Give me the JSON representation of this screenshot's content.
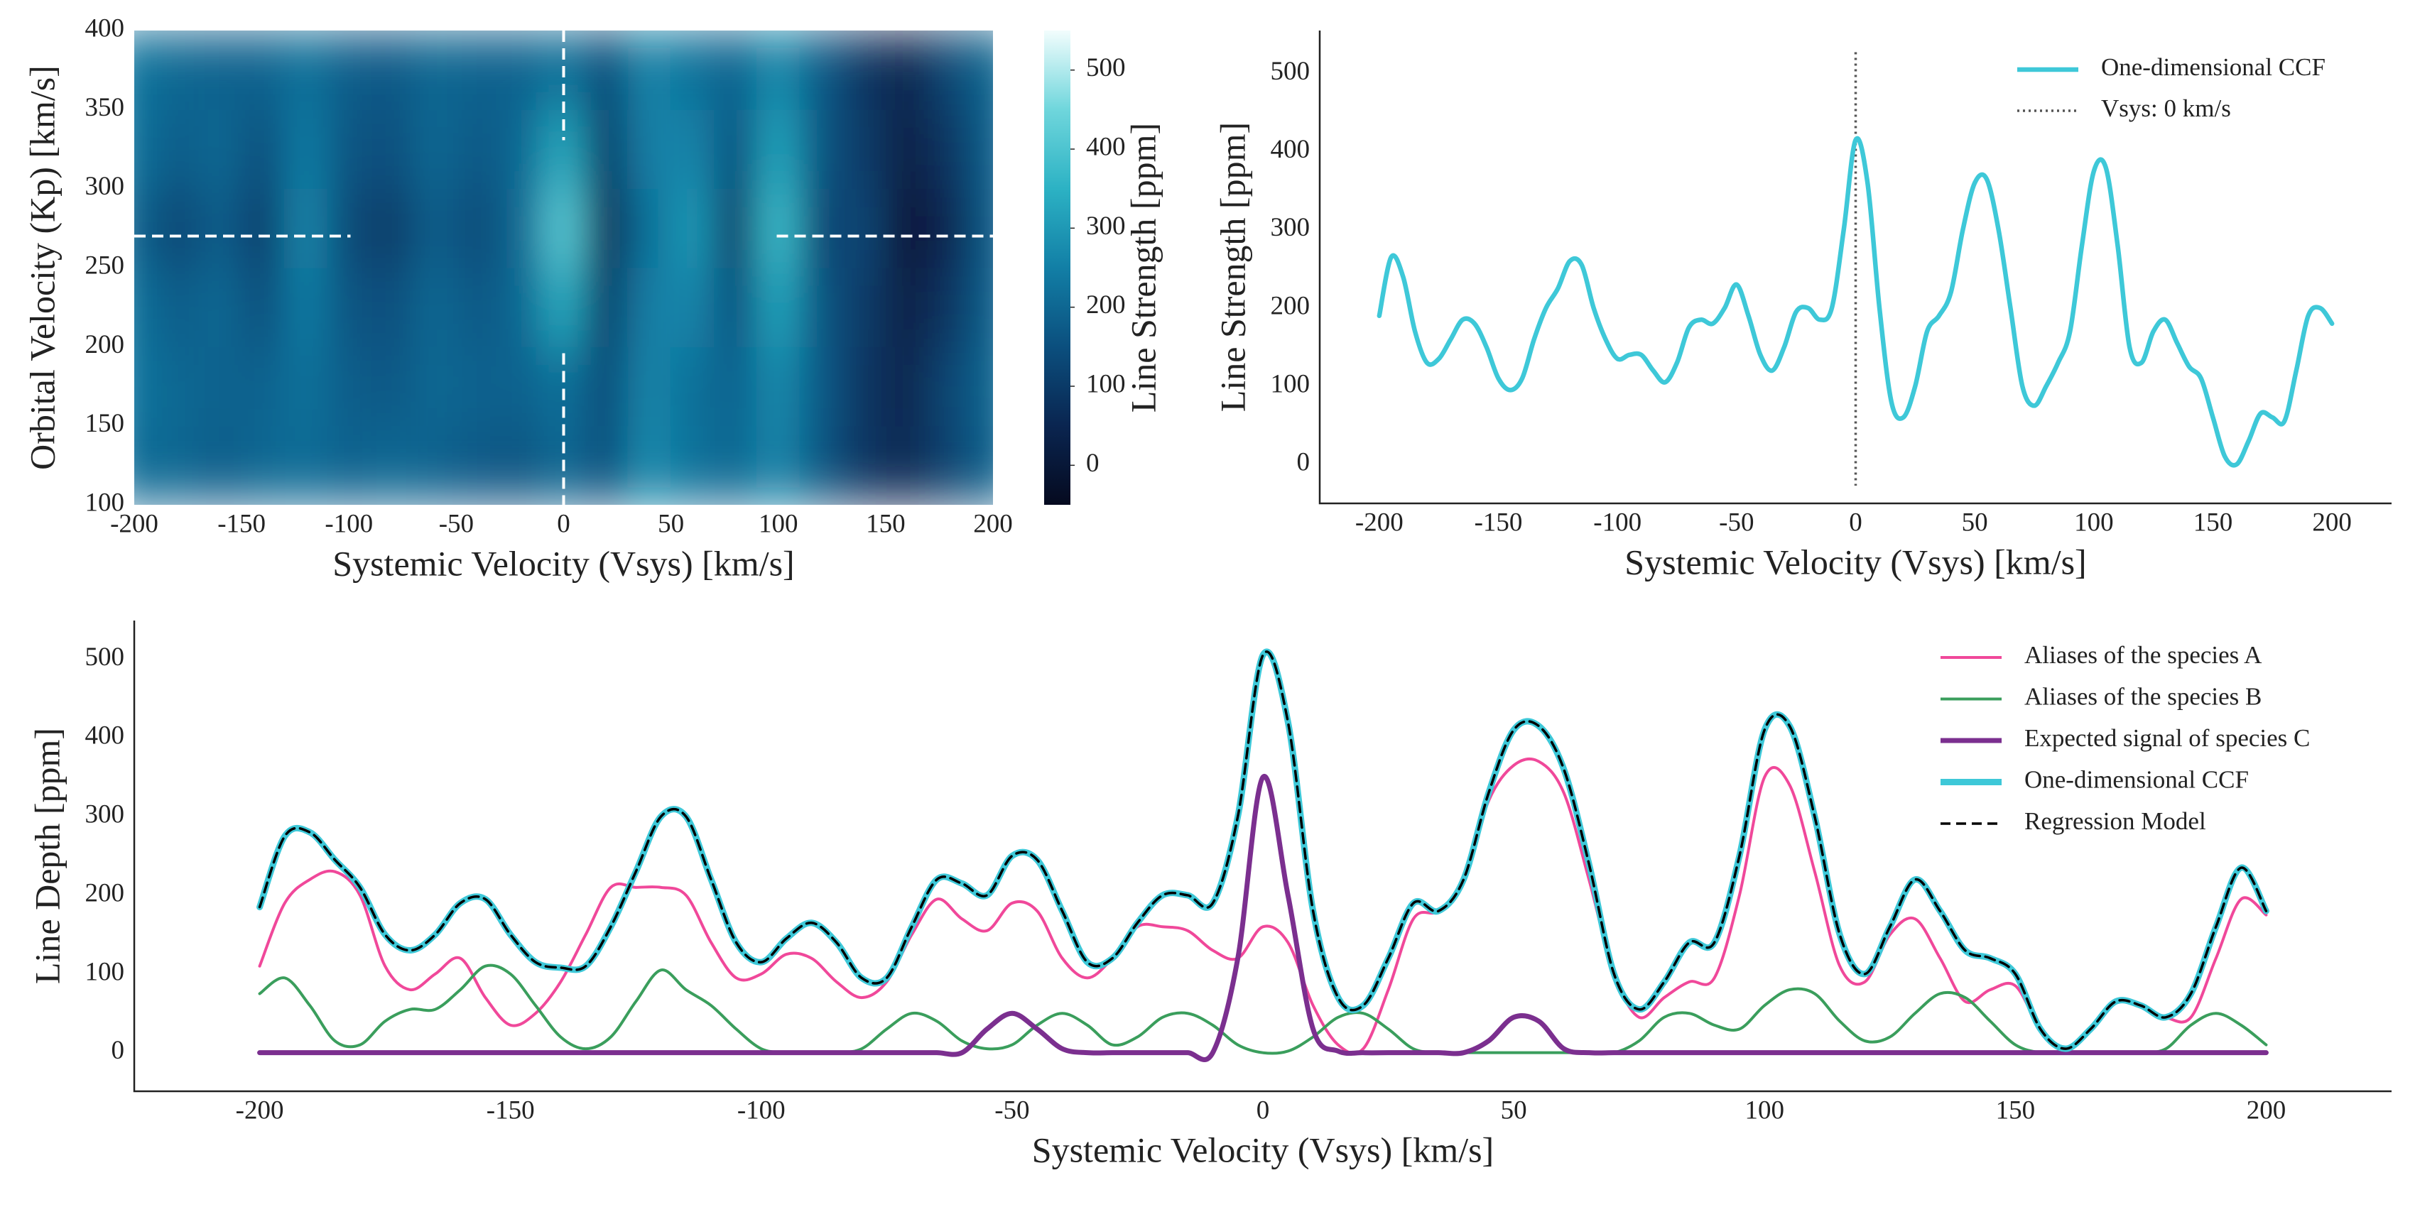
{
  "chart_data": [
    {
      "type": "heatmap",
      "x": [
        -200,
        -180,
        -160,
        -140,
        -120,
        -100,
        -80,
        -60,
        -40,
        -20,
        0,
        20,
        40,
        60,
        80,
        100,
        120,
        140,
        160,
        180,
        200
      ],
      "y": [
        125,
        175,
        225,
        275,
        325,
        375
      ],
      "values": [
        [
          210,
          200,
          180,
          200,
          210,
          190,
          200,
          190,
          170,
          160,
          200,
          150,
          270,
          220,
          200,
          260,
          160,
          90,
          60,
          120,
          190
        ],
        [
          230,
          200,
          190,
          190,
          220,
          180,
          170,
          200,
          190,
          190,
          220,
          140,
          260,
          220,
          190,
          270,
          170,
          90,
          50,
          130,
          200
        ],
        [
          220,
          180,
          200,
          150,
          240,
          160,
          150,
          200,
          170,
          200,
          330,
          100,
          250,
          260,
          150,
          320,
          160,
          100,
          30,
          90,
          190
        ],
        [
          190,
          130,
          180,
          110,
          260,
          135,
          105,
          180,
          140,
          200,
          415,
          60,
          220,
          300,
          100,
          375,
          130,
          125,
          0,
          55,
          180
        ],
        [
          220,
          180,
          200,
          150,
          240,
          160,
          150,
          200,
          170,
          200,
          330,
          100,
          250,
          260,
          150,
          320,
          160,
          100,
          30,
          90,
          190
        ],
        [
          230,
          200,
          190,
          190,
          220,
          180,
          170,
          200,
          190,
          190,
          220,
          140,
          260,
          220,
          190,
          270,
          170,
          90,
          50,
          130,
          200
        ]
      ],
      "xlim": [
        -200,
        200
      ],
      "ylim": [
        100,
        400
      ],
      "xticks": [
        -200,
        -150,
        -100,
        -50,
        0,
        50,
        100,
        150,
        200
      ],
      "yticks": [
        100,
        150,
        200,
        250,
        300,
        350,
        400
      ],
      "xlabel": "Systemic Velocity (Vsys) [km/s]",
      "ylabel": "Orbital Velocity (Kp) [km/s]",
      "crosshair": {
        "x": 0,
        "y": 270
      },
      "colorbar": {
        "label": "Line Strength [ppm]",
        "clim": [
          -50,
          550
        ],
        "ticks": [
          0,
          100,
          200,
          300,
          400,
          500
        ],
        "colors": [
          "#050a1f",
          "#0a2550",
          "#0b4f7e",
          "#127fa6",
          "#2cb2c4",
          "#6fd6dc",
          "#f2fdfd"
        ]
      }
    },
    {
      "type": "line",
      "x": [
        -200,
        -195,
        -190,
        -185,
        -180,
        -175,
        -170,
        -165,
        -160,
        -155,
        -150,
        -145,
        -140,
        -135,
        -130,
        -125,
        -120,
        -115,
        -110,
        -105,
        -100,
        -95,
        -90,
        -85,
        -80,
        -75,
        -70,
        -65,
        -60,
        -55,
        -50,
        -45,
        -40,
        -35,
        -30,
        -25,
        -20,
        -15,
        -10,
        -5,
        0,
        5,
        10,
        15,
        20,
        25,
        30,
        35,
        40,
        45,
        50,
        55,
        60,
        65,
        70,
        75,
        80,
        85,
        90,
        95,
        100,
        105,
        110,
        115,
        120,
        125,
        130,
        135,
        140,
        145,
        150,
        155,
        160,
        165,
        170,
        175,
        180,
        185,
        190,
        195,
        200
      ],
      "series": [
        {
          "name": "One-dimensional CCF",
          "color": "#3ec8d8",
          "width": 6.5,
          "values": [
            190,
            265,
            240,
            170,
            130,
            135,
            160,
            185,
            180,
            150,
            110,
            95,
            110,
            160,
            200,
            225,
            260,
            255,
            200,
            160,
            135,
            140,
            140,
            120,
            105,
            130,
            175,
            185,
            180,
            200,
            230,
            190,
            140,
            120,
            150,
            195,
            200,
            185,
            200,
            300,
            415,
            360,
            200,
            80,
            60,
            100,
            170,
            190,
            220,
            300,
            360,
            365,
            300,
            200,
            100,
            75,
            100,
            130,
            170,
            280,
            375,
            380,
            280,
            150,
            130,
            170,
            185,
            155,
            125,
            110,
            60,
            10,
            0,
            30,
            65,
            60,
            55,
            120,
            190,
            200,
            180
          ]
        }
      ],
      "vline": {
        "value": 0,
        "label": "Vsys: 0 km/s",
        "color": "#555555"
      },
      "xlim": [
        -225,
        225
      ],
      "ylim": [
        -50,
        555
      ],
      "xticks": [
        -200,
        -150,
        -100,
        -50,
        0,
        50,
        100,
        150,
        200
      ],
      "yticks": [
        0,
        100,
        200,
        300,
        400,
        500
      ],
      "xlabel": "Systemic Velocity (Vsys) [km/s]",
      "ylabel": "Line Strength [ppm]",
      "legend": "upper right"
    },
    {
      "type": "line",
      "x": [
        -200,
        -195,
        -190,
        -185,
        -180,
        -175,
        -170,
        -165,
        -160,
        -155,
        -150,
        -145,
        -140,
        -135,
        -130,
        -125,
        -120,
        -115,
        -110,
        -105,
        -100,
        -95,
        -90,
        -85,
        -80,
        -75,
        -70,
        -65,
        -60,
        -55,
        -50,
        -45,
        -40,
        -35,
        -30,
        -25,
        -20,
        -15,
        -10,
        -5,
        0,
        5,
        10,
        15,
        20,
        25,
        30,
        35,
        40,
        45,
        50,
        55,
        60,
        65,
        70,
        75,
        80,
        85,
        90,
        95,
        100,
        105,
        110,
        115,
        120,
        125,
        130,
        135,
        140,
        145,
        150,
        155,
        160,
        165,
        170,
        175,
        180,
        185,
        190,
        195,
        200
      ],
      "series": [
        {
          "name": "Aliases of the species A",
          "color": "#f0489a",
          "width": 4,
          "values": [
            110,
            190,
            220,
            230,
            200,
            110,
            80,
            100,
            120,
            70,
            35,
            50,
            90,
            150,
            210,
            210,
            210,
            200,
            140,
            95,
            100,
            125,
            120,
            90,
            70,
            90,
            150,
            195,
            170,
            155,
            190,
            180,
            120,
            95,
            120,
            160,
            160,
            155,
            130,
            120,
            160,
            140,
            60,
            10,
            5,
            80,
            170,
            180,
            220,
            320,
            365,
            370,
            330,
            220,
            100,
            45,
            70,
            90,
            95,
            200,
            350,
            340,
            230,
            110,
            90,
            150,
            170,
            120,
            65,
            80,
            85,
            30,
            5,
            30,
            65,
            60,
            45,
            45,
            120,
            195,
            175
          ]
        },
        {
          "name": "Aliases of the species B",
          "color": "#3a9e5c",
          "width": 4,
          "values": [
            75,
            95,
            60,
            15,
            10,
            40,
            55,
            55,
            80,
            110,
            100,
            60,
            20,
            5,
            20,
            65,
            105,
            80,
            60,
            30,
            5,
            0,
            0,
            0,
            5,
            30,
            50,
            40,
            15,
            5,
            10,
            35,
            50,
            35,
            10,
            20,
            45,
            50,
            35,
            10,
            0,
            2,
            20,
            45,
            50,
            30,
            5,
            0,
            0,
            0,
            0,
            0,
            0,
            0,
            0,
            15,
            45,
            50,
            35,
            30,
            60,
            80,
            75,
            40,
            15,
            20,
            50,
            75,
            70,
            40,
            10,
            0,
            0,
            0,
            0,
            0,
            5,
            35,
            50,
            35,
            10
          ]
        },
        {
          "name": "Expected signal of species C",
          "color": "#7b2f8f",
          "width": 7,
          "values": [
            0,
            0,
            0,
            0,
            0,
            0,
            0,
            0,
            0,
            0,
            0,
            0,
            0,
            0,
            0,
            0,
            0,
            0,
            0,
            0,
            0,
            0,
            0,
            0,
            0,
            0,
            0,
            0,
            0,
            30,
            50,
            30,
            5,
            0,
            0,
            0,
            0,
            0,
            0,
            120,
            350,
            200,
            30,
            2,
            0,
            0,
            0,
            0,
            0,
            15,
            45,
            40,
            5,
            0,
            0,
            0,
            0,
            0,
            0,
            0,
            0,
            0,
            0,
            0,
            0,
            0,
            0,
            0,
            0,
            0,
            0,
            0,
            0,
            0,
            0,
            0,
            0,
            0,
            0,
            0,
            0
          ]
        },
        {
          "name": "One-dimensional CCF",
          "color": "#3ec8d8",
          "width": 9,
          "values": [
            185,
            275,
            280,
            245,
            210,
            150,
            130,
            150,
            190,
            195,
            150,
            115,
            108,
            110,
            160,
            230,
            300,
            300,
            220,
            140,
            115,
            145,
            165,
            140,
            95,
            95,
            160,
            220,
            215,
            200,
            250,
            245,
            180,
            115,
            120,
            165,
            200,
            200,
            190,
            300,
            505,
            420,
            180,
            70,
            60,
            120,
            190,
            180,
            220,
            330,
            410,
            415,
            360,
            240,
            100,
            55,
            90,
            140,
            140,
            250,
            410,
            415,
            300,
            150,
            100,
            160,
            220,
            180,
            130,
            120,
            100,
            30,
            5,
            30,
            65,
            60,
            45,
            75,
            160,
            235,
            180
          ]
        },
        {
          "name": "Regression Model",
          "color": "#000000",
          "width": 3.5,
          "dash": true,
          "values": [
            185,
            275,
            280,
            245,
            210,
            150,
            130,
            150,
            190,
            195,
            150,
            115,
            108,
            110,
            160,
            230,
            300,
            300,
            220,
            140,
            115,
            145,
            165,
            140,
            95,
            95,
            160,
            220,
            215,
            200,
            250,
            245,
            180,
            115,
            120,
            165,
            200,
            200,
            190,
            300,
            505,
            420,
            180,
            70,
            60,
            120,
            190,
            180,
            220,
            330,
            410,
            415,
            360,
            240,
            100,
            55,
            90,
            140,
            140,
            250,
            410,
            415,
            300,
            150,
            100,
            160,
            220,
            180,
            130,
            120,
            100,
            30,
            5,
            30,
            65,
            60,
            45,
            75,
            160,
            235,
            180
          ]
        }
      ],
      "xlim": [
        -225,
        225
      ],
      "ylim": [
        -49,
        549
      ],
      "xticks": [
        -200,
        -150,
        -100,
        -50,
        0,
        50,
        100,
        150,
        200
      ],
      "yticks": [
        0,
        100,
        200,
        300,
        400,
        500
      ],
      "xlabel": "Systemic Velocity (Vsys) [km/s]",
      "ylabel": "Line Depth [ppm]",
      "legend": "upper right"
    }
  ]
}
